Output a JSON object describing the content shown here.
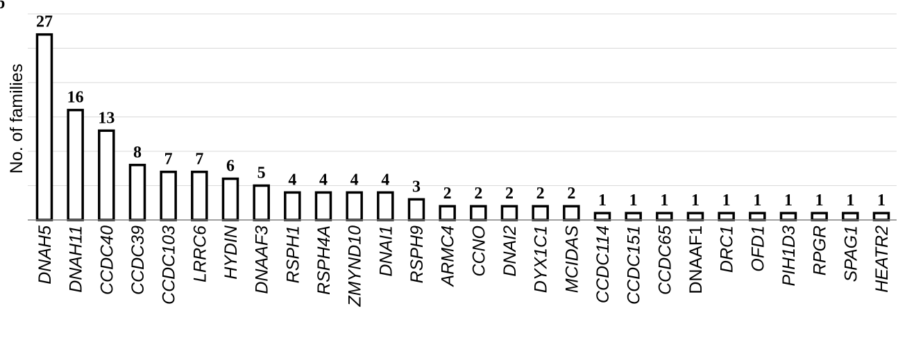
{
  "panel_label": "b",
  "chart_data": {
    "type": "bar",
    "ylabel": "No. of families",
    "xlabel": "",
    "title": "",
    "ylim": [
      0,
      30
    ],
    "ytick_step": 5,
    "ytick_labels_visible": false,
    "grid": "horizontal",
    "legend": "none",
    "bar_fill": "#ffffff",
    "bar_stroke": "#000000",
    "categories": [
      "DNAH5",
      "DNAH11",
      "CCDC40",
      "CCDC39",
      "CCDC103",
      "LRRC6",
      "HYDIN",
      "DNAAF3",
      "RSPH1",
      "RSPH4A",
      "ZMYND10",
      "DNAI1",
      "RSPH9",
      "ARMC4",
      "CCNO",
      "DNAI2",
      "DYX1C1",
      "MCIDAS",
      "CCDC114",
      "CCDC151",
      "CCDC65",
      "DNAAF1",
      "DRC1",
      "OFD1",
      "PIH1D3",
      "RPGR",
      "SPAG1",
      "HEATR2"
    ],
    "category_italic": [
      true,
      true,
      true,
      true,
      true,
      true,
      true,
      true,
      true,
      true,
      true,
      true,
      true,
      true,
      true,
      true,
      true,
      true,
      true,
      true,
      true,
      false,
      true,
      true,
      true,
      true,
      true,
      true
    ],
    "values": [
      27,
      16,
      13,
      8,
      7,
      7,
      6,
      5,
      4,
      4,
      4,
      4,
      3,
      2,
      2,
      2,
      2,
      2,
      1,
      1,
      1,
      1,
      1,
      1,
      1,
      1,
      1,
      1
    ],
    "value_labels": [
      "27",
      "16",
      "13",
      "8",
      "7",
      "7",
      "6",
      "5",
      "4",
      "4",
      "4",
      "4",
      "3",
      "2",
      "2",
      "2",
      "2",
      "2",
      "1",
      "1",
      "1",
      "1",
      "1",
      "1",
      "1",
      "1",
      "1",
      "1"
    ]
  }
}
